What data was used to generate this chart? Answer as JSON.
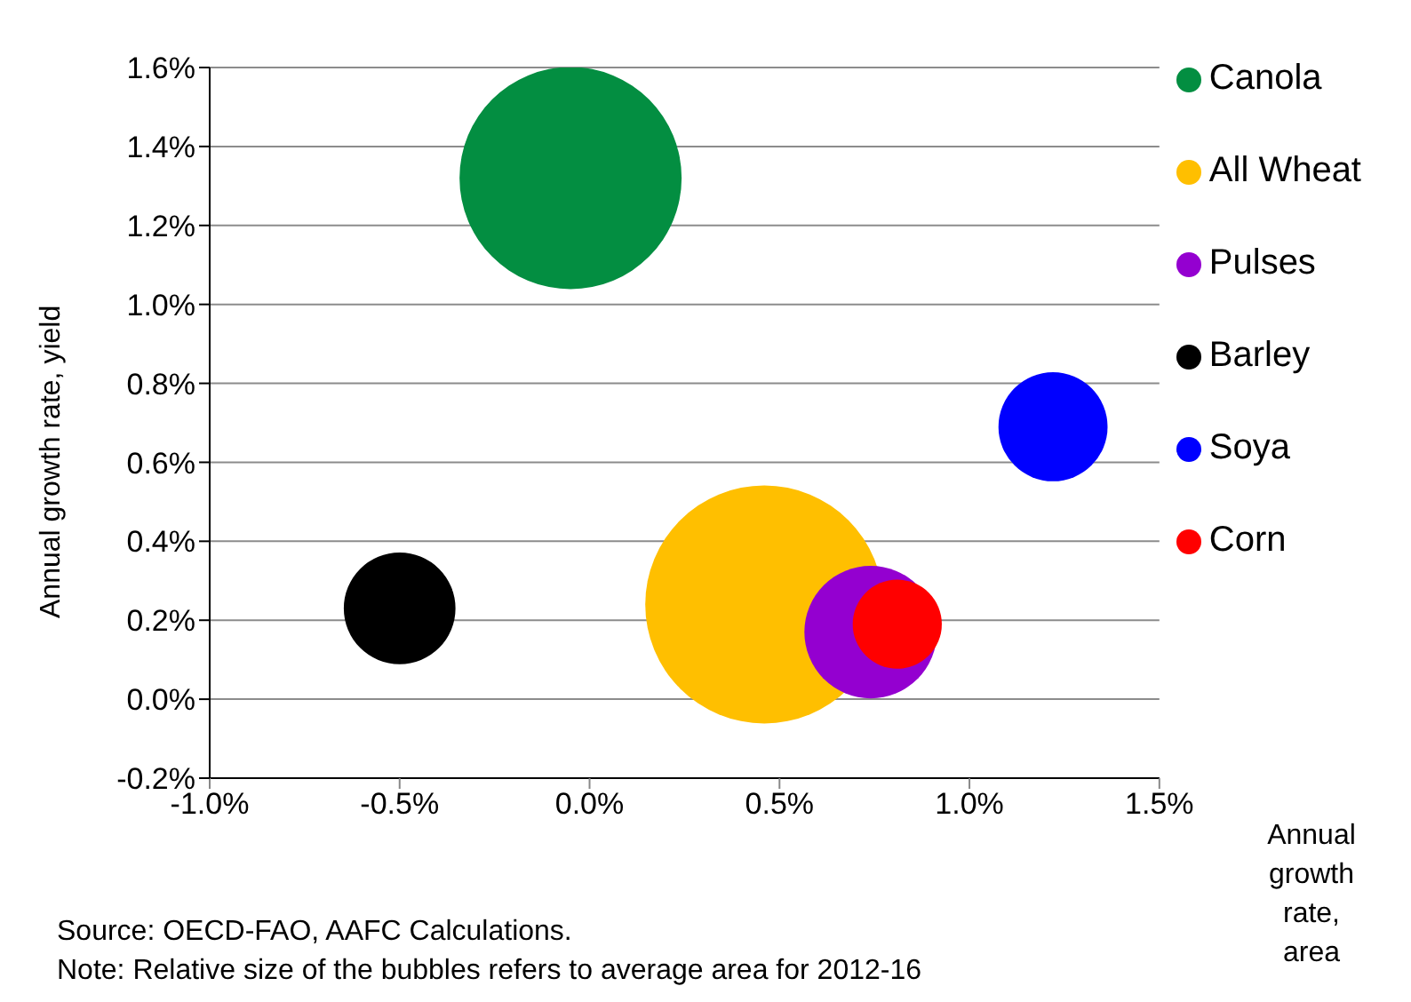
{
  "chart_data": {
    "type": "bubble",
    "ylabel": "Annual growth rate, yield",
    "xlabel": "Annual growth rate, area",
    "annotations": [
      "Source: OECD-FAO, AAFC Calculations.",
      "Note: Relative size of the bubbles refers to average area for 2012-16"
    ],
    "xlim": [
      -1.0,
      1.5
    ],
    "xticks": [
      {
        "value": -1.0,
        "label": "-1.0%"
      },
      {
        "value": -0.5,
        "label": "-0.5%"
      },
      {
        "value": 0,
        "label": "0.0%"
      },
      {
        "value": 0.5,
        "label": "0.5%"
      },
      {
        "value": 1.0,
        "label": "1.0%"
      },
      {
        "value": 1.5,
        "label": "1.5%"
      }
    ],
    "ylim": [
      -0.2,
      1.6
    ],
    "yticks": [
      {
        "value": -0.2,
        "label": "-0.2%"
      },
      {
        "value": 0,
        "label": "0.0%"
      },
      {
        "value": 0.2,
        "label": "0.2%"
      },
      {
        "value": 0.4,
        "label": "0.4%"
      },
      {
        "value": 0.6,
        "label": "0.6%"
      },
      {
        "value": 0.8,
        "label": "0.8%"
      },
      {
        "value": 1.0,
        "label": "1.0%"
      },
      {
        "value": 1.2,
        "label": "1.2%"
      },
      {
        "value": 1.4,
        "label": "1.4%"
      },
      {
        "value": 1.6,
        "label": "1.6%"
      }
    ],
    "grid": "y",
    "legend": "right",
    "series": [
      {
        "name": "Canola",
        "color": "#038e41",
        "x": [
          -0.05
        ],
        "values": [
          1.32
        ],
        "sizes": [
          0.87
        ]
      },
      {
        "name": "All Wheat",
        "color": "#ffbf00",
        "x": [
          0.46
        ],
        "values": [
          0.24
        ],
        "sizes": [
          1
        ]
      },
      {
        "name": "Pulses",
        "color": "#9400d0",
        "x": [
          0.74
        ],
        "values": [
          0.17
        ],
        "sizes": [
          0.31
        ]
      },
      {
        "name": "Barley",
        "color": "#000000",
        "x": [
          -0.5
        ],
        "values": [
          0.23
        ],
        "sizes": [
          0.22
        ]
      },
      {
        "name": "Soya",
        "color": "#0000ff",
        "x": [
          1.22
        ],
        "values": [
          0.69
        ],
        "sizes": [
          0.21
        ]
      },
      {
        "name": "Corn",
        "color": "#ff0000",
        "x": [
          0.81
        ],
        "values": [
          0.19
        ],
        "sizes": [
          0.14
        ]
      }
    ]
  }
}
